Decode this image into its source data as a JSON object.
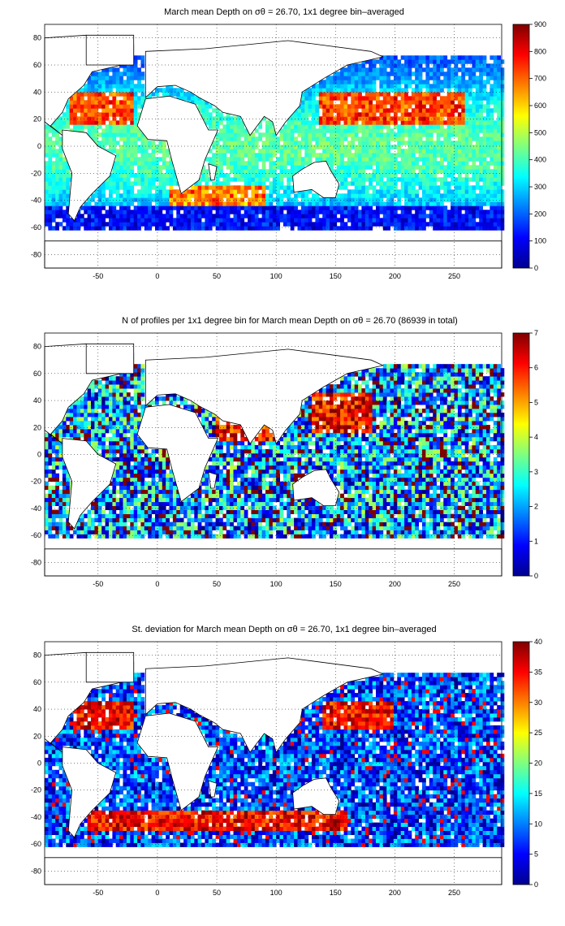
{
  "panels": [
    {
      "title": "March mean Depth on σθ = 26.70, 1x1 degree bin–averaged",
      "cb_ticks": [
        "0",
        "100",
        "200",
        "300",
        "400",
        "500",
        "600",
        "700",
        "800",
        "900"
      ],
      "field": "depth",
      "xlim": [
        -95,
        290
      ],
      "ylim": [
        -90,
        90
      ]
    },
    {
      "title": "N of profiles per 1x1 degree bin for March mean Depth on σθ = 26.70 (86939 in total)",
      "cb_ticks": [
        "0",
        "1",
        "2",
        "3",
        "4",
        "5",
        "6",
        "7"
      ],
      "field": "count",
      "xlim": [
        -95,
        290
      ],
      "ylim": [
        -90,
        90
      ]
    },
    {
      "title": "St. deviation for March mean Depth on σθ = 26.70, 1x1 degree bin–averaged",
      "cb_ticks": [
        "0",
        "5",
        "10",
        "15",
        "20",
        "25",
        "30",
        "35",
        "40"
      ],
      "field": "std",
      "xlim": [
        -95,
        290
      ],
      "ylim": [
        -90,
        90
      ]
    }
  ],
  "x_ticks": [
    "-50",
    "0",
    "50",
    "100",
    "150",
    "200",
    "250"
  ],
  "y_ticks": [
    "80",
    "60",
    "40",
    "20",
    "0",
    "-20",
    "-40",
    "-60",
    "-80"
  ],
  "colormap": "jet",
  "colors": {
    "land": "#ffffff",
    "coast": "#000000",
    "grid": "#000000"
  }
}
